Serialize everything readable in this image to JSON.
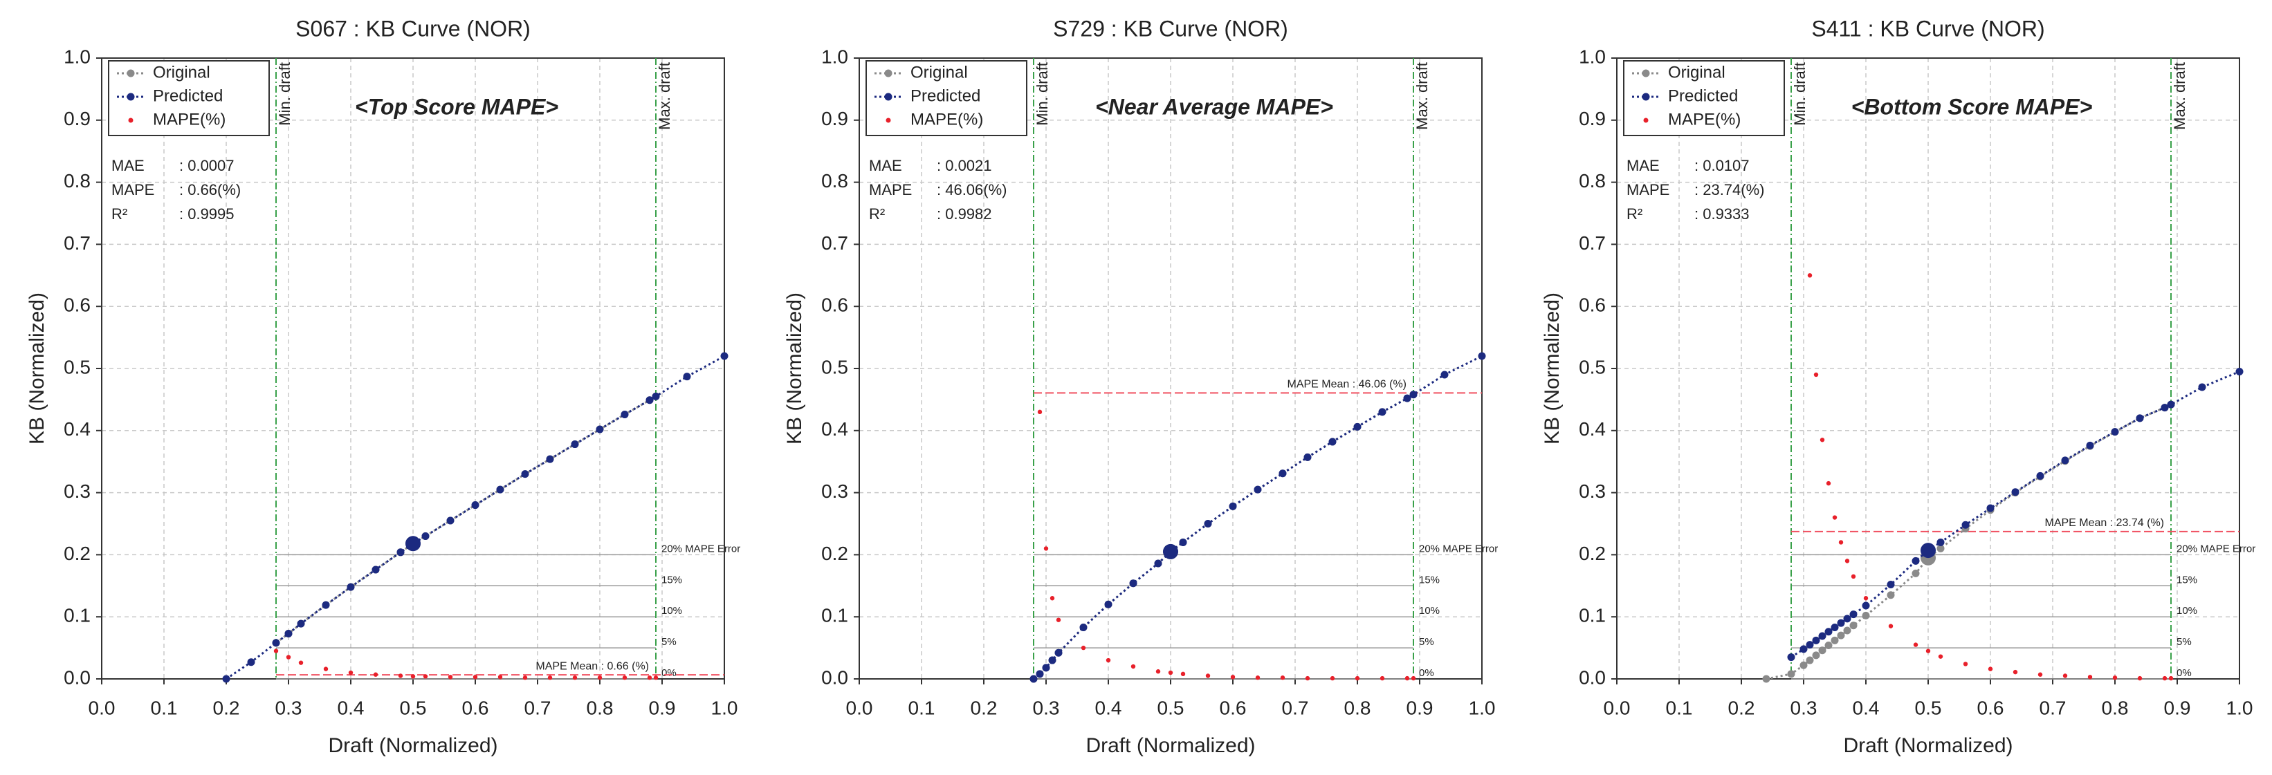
{
  "chart_data": [
    {
      "type": "line",
      "title": "S067 : KB Curve (NOR)",
      "x_label": "Draft (Normalized)",
      "y_label": "KB (Normalized)",
      "tag": "<Top Score MAPE>",
      "stats": [
        {
          "label": "MAE",
          "value": ": 0.0007"
        },
        {
          "label": "MAPE",
          "value": ": 0.66(%)"
        },
        {
          "label": "R²",
          "value": ": 0.9995"
        }
      ],
      "vlines": [
        {
          "value": 0.28,
          "label": "Min. draft"
        },
        {
          "value": 0.89,
          "label": "Max. draft"
        }
      ],
      "ref_lines": [
        {
          "value": 0.2,
          "label": "20% MAPE Error"
        },
        {
          "value": 0.15,
          "label": "15%"
        },
        {
          "value": 0.1,
          "label": "10%"
        },
        {
          "value": 0.05,
          "label": "5%"
        },
        {
          "value": 0,
          "label": "0%"
        }
      ],
      "mape_mean": {
        "value": 0.0066,
        "label": "MAPE Mean : 0.66 (%)"
      },
      "x": [
        0.2,
        0.24,
        0.28,
        0.3,
        0.32,
        0.36,
        0.4,
        0.44,
        0.48,
        0.5,
        0.52,
        0.56,
        0.6,
        0.64,
        0.68,
        0.72,
        0.76,
        0.8,
        0.84,
        0.88,
        0.89,
        0.94,
        1.0
      ],
      "series": [
        {
          "name": "Original",
          "color": "#8a8a8a",
          "style": "line",
          "values": [
            null,
            null,
            0.058,
            0.073,
            0.089,
            0.119,
            0.148,
            0.176,
            0.204,
            0.218,
            0.23,
            0.255,
            0.28,
            0.305,
            0.33,
            0.354,
            0.378,
            0.402,
            0.426,
            0.449,
            0.455,
            null,
            null
          ]
        },
        {
          "name": "Predicted",
          "color": "#1c2a80",
          "style": "line",
          "values": [
            0,
            0.027,
            0.058,
            0.073,
            0.089,
            0.119,
            0.148,
            0.176,
            0.204,
            0.218,
            0.23,
            0.255,
            0.28,
            0.305,
            0.33,
            0.354,
            0.378,
            0.402,
            0.426,
            0.449,
            0.455,
            0.487,
            0.52
          ]
        },
        {
          "name": "MAPE(%)",
          "color": "#e8202a",
          "style": "points",
          "values": [
            null,
            null,
            0.045,
            0.035,
            0.026,
            0.016,
            0.01,
            0.007,
            0.005,
            0.004,
            0.004,
            0.003,
            0.003,
            0.003,
            0.002,
            0.002,
            0.002,
            0.002,
            0.002,
            0.002,
            0.002,
            null,
            null
          ]
        }
      ],
      "xlim": [
        0,
        1
      ],
      "ylim": [
        0,
        1
      ],
      "grid": true,
      "xticks": [
        {
          "value": 0,
          "label": "0.0"
        },
        0.1,
        0.2,
        0.3,
        0.4,
        0.5,
        0.6,
        0.7,
        0.8,
        0.9,
        {
          "value": 1,
          "label": "1.0"
        }
      ],
      "yticks": [
        {
          "value": 0,
          "label": "0.0"
        },
        0.1,
        0.2,
        0.3,
        0.4,
        0.5,
        0.6,
        0.7,
        0.8,
        0.9,
        {
          "value": 1,
          "label": "1.0"
        }
      ]
    },
    {
      "type": "line",
      "title": "S729 : KB Curve (NOR)",
      "x_label": "Draft (Normalized)",
      "y_label": "KB (Normalized)",
      "tag": "<Near Average MAPE>",
      "stats": [
        {
          "label": "MAE",
          "value": ": 0.0021"
        },
        {
          "label": "MAPE",
          "value": ": 46.06(%)"
        },
        {
          "label": "R²",
          "value": ": 0.9982"
        }
      ],
      "vlines": [
        {
          "value": 0.28,
          "label": "Min. draft"
        },
        {
          "value": 0.89,
          "label": "Max. draft"
        }
      ],
      "ref_lines": [
        {
          "value": 0.2,
          "label": "20% MAPE Error"
        },
        {
          "value": 0.15,
          "label": "15%"
        },
        {
          "value": 0.1,
          "label": "10%"
        },
        {
          "value": 0.05,
          "label": "5%"
        },
        {
          "value": 0,
          "label": "0%"
        }
      ],
      "mape_mean": {
        "value": 0.4606,
        "label": "MAPE Mean : 46.06 (%)"
      },
      "x": [
        0.28,
        0.29,
        0.3,
        0.31,
        0.32,
        0.36,
        0.4,
        0.44,
        0.48,
        0.5,
        0.52,
        0.56,
        0.6,
        0.64,
        0.68,
        0.72,
        0.76,
        0.8,
        0.84,
        0.88,
        0.89,
        0.94,
        1.0
      ],
      "series": [
        {
          "name": "Original",
          "color": "#8a8a8a",
          "style": "line",
          "values": [
            0,
            0.008,
            0.018,
            0.03,
            0.042,
            0.083,
            0.12,
            0.154,
            0.186,
            0.205,
            0.22,
            0.25,
            0.278,
            0.305,
            0.331,
            0.357,
            0.382,
            0.406,
            0.43,
            0.452,
            0.458,
            null,
            null
          ]
        },
        {
          "name": "Predicted",
          "color": "#1c2a80",
          "style": "line",
          "values": [
            0,
            0.008,
            0.018,
            0.03,
            0.042,
            0.083,
            0.12,
            0.154,
            0.186,
            0.205,
            0.22,
            0.25,
            0.278,
            0.305,
            0.331,
            0.357,
            0.382,
            0.406,
            0.43,
            0.452,
            0.458,
            0.49,
            0.52
          ]
        },
        {
          "name": "MAPE(%)",
          "color": "#e8202a",
          "style": "points",
          "values": [
            null,
            0.43,
            0.21,
            0.13,
            0.095,
            0.05,
            0.03,
            0.02,
            0.012,
            0.01,
            0.008,
            0.005,
            0.003,
            0.002,
            0.002,
            0.001,
            0.001,
            0.001,
            0.001,
            0.001,
            0.001,
            null,
            null
          ]
        }
      ],
      "xlim": [
        0,
        1
      ],
      "ylim": [
        0,
        1
      ],
      "grid": true,
      "xticks": [
        {
          "value": 0,
          "label": "0.0"
        },
        0.1,
        0.2,
        0.3,
        0.4,
        0.5,
        0.6,
        0.7,
        0.8,
        0.9,
        {
          "value": 1,
          "label": "1.0"
        }
      ],
      "yticks": [
        {
          "value": 0,
          "label": "0.0"
        },
        0.1,
        0.2,
        0.3,
        0.4,
        0.5,
        0.6,
        0.7,
        0.8,
        0.9,
        {
          "value": 1,
          "label": "1.0"
        }
      ]
    },
    {
      "type": "line",
      "title": "S411 : KB Curve (NOR)",
      "x_label": "Draft (Normalized)",
      "y_label": "KB (Normalized)",
      "tag": "<Bottom Score MAPE>",
      "stats": [
        {
          "label": "MAE",
          "value": ": 0.0107"
        },
        {
          "label": "MAPE",
          "value": ": 23.74(%)"
        },
        {
          "label": "R²",
          "value": ": 0.9333"
        }
      ],
      "vlines": [
        {
          "value": 0.28,
          "label": "Min. draft"
        },
        {
          "value": 0.89,
          "label": "Max. draft"
        }
      ],
      "ref_lines": [
        {
          "value": 0.2,
          "label": "20% MAPE Error"
        },
        {
          "value": 0.15,
          "label": "15%"
        },
        {
          "value": 0.1,
          "label": "10%"
        },
        {
          "value": 0.05,
          "label": "5%"
        },
        {
          "value": 0,
          "label": "0%"
        }
      ],
      "mape_mean": {
        "value": 0.2374,
        "label": "MAPE Mean : 23.74 (%)"
      },
      "x": [
        0.24,
        0.28,
        0.3,
        0.31,
        0.32,
        0.33,
        0.34,
        0.35,
        0.36,
        0.37,
        0.38,
        0.4,
        0.44,
        0.48,
        0.5,
        0.52,
        0.56,
        0.6,
        0.64,
        0.68,
        0.72,
        0.76,
        0.8,
        0.84,
        0.88,
        0.89,
        0.94,
        1.0
      ],
      "series": [
        {
          "name": "Original",
          "color": "#8a8a8a",
          "style": "line",
          "values": [
            0,
            0.008,
            0.022,
            0.03,
            0.038,
            0.046,
            0.054,
            0.062,
            0.07,
            0.078,
            0.086,
            0.102,
            0.135,
            0.17,
            0.195,
            0.21,
            0.242,
            0.272,
            0.3,
            0.326,
            0.351,
            0.375,
            0.398,
            0.42,
            0.437,
            0.442,
            null,
            null
          ]
        },
        {
          "name": "Predicted",
          "color": "#1c2a80",
          "style": "line",
          "values": [
            null,
            0.035,
            0.048,
            0.055,
            0.062,
            0.069,
            0.076,
            0.083,
            0.09,
            0.097,
            0.104,
            0.118,
            0.152,
            0.19,
            0.207,
            0.22,
            0.248,
            0.275,
            0.301,
            0.327,
            0.352,
            0.376,
            0.398,
            0.42,
            0.437,
            0.442,
            0.47,
            0.495
          ]
        },
        {
          "name": "MAPE(%)",
          "color": "#e8202a",
          "style": "points",
          "values": [
            null,
            null,
            null,
            0.65,
            0.49,
            0.385,
            0.315,
            0.26,
            0.22,
            0.19,
            0.165,
            0.13,
            0.085,
            0.055,
            0.045,
            0.036,
            0.024,
            0.016,
            0.011,
            0.007,
            0.005,
            0.003,
            0.002,
            0.001,
            0.001,
            0.001,
            null,
            null
          ]
        }
      ],
      "xlim": [
        0,
        1
      ],
      "ylim": [
        0,
        1
      ],
      "grid": true,
      "xticks": [
        {
          "value": 0,
          "label": "0.0"
        },
        0.1,
        0.2,
        0.3,
        0.4,
        0.5,
        0.6,
        0.7,
        0.8,
        0.9,
        {
          "value": 1,
          "label": "1.0"
        }
      ],
      "yticks": [
        {
          "value": 0,
          "label": "0.0"
        },
        0.1,
        0.2,
        0.3,
        0.4,
        0.5,
        0.6,
        0.7,
        0.8,
        0.9,
        {
          "value": 1,
          "label": "1.0"
        }
      ]
    }
  ]
}
